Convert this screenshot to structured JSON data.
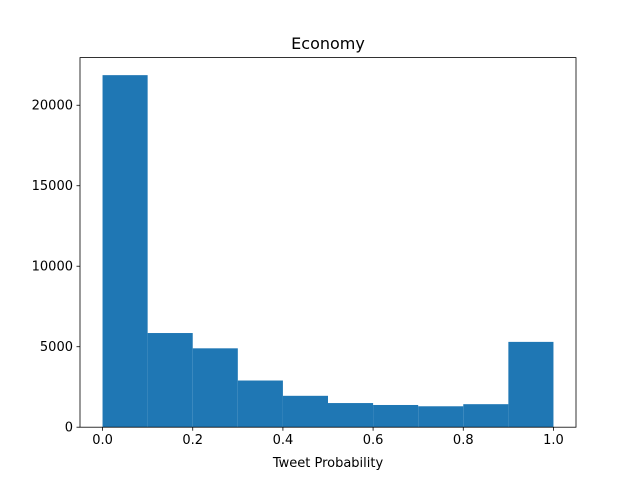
{
  "chart_data": {
    "type": "histogram",
    "title": "Economy",
    "x_label": "Tweet Probability",
    "bins": [
      0.0,
      0.1,
      0.2,
      0.3,
      0.4,
      0.5,
      0.6,
      0.7,
      0.8,
      0.9,
      1.0
    ],
    "values": [
      21870,
      5850,
      4900,
      2900,
      1950,
      1500,
      1380,
      1300,
      1430,
      5300
    ],
    "color": "#1f77b4",
    "xlim": [
      -0.05,
      1.05
    ],
    "xticks": [
      {
        "value": 0.0,
        "label": "0.0"
      },
      {
        "value": 0.2,
        "label": "0.2"
      },
      {
        "value": 0.4,
        "label": "0.4"
      },
      {
        "value": 0.6,
        "label": "0.6"
      },
      {
        "value": 0.8,
        "label": "0.8"
      },
      {
        "value": 1.0,
        "label": "1.0"
      }
    ],
    "ylim": [
      0,
      22960
    ],
    "yticks": [
      0,
      5000,
      10000,
      15000,
      20000
    ]
  }
}
